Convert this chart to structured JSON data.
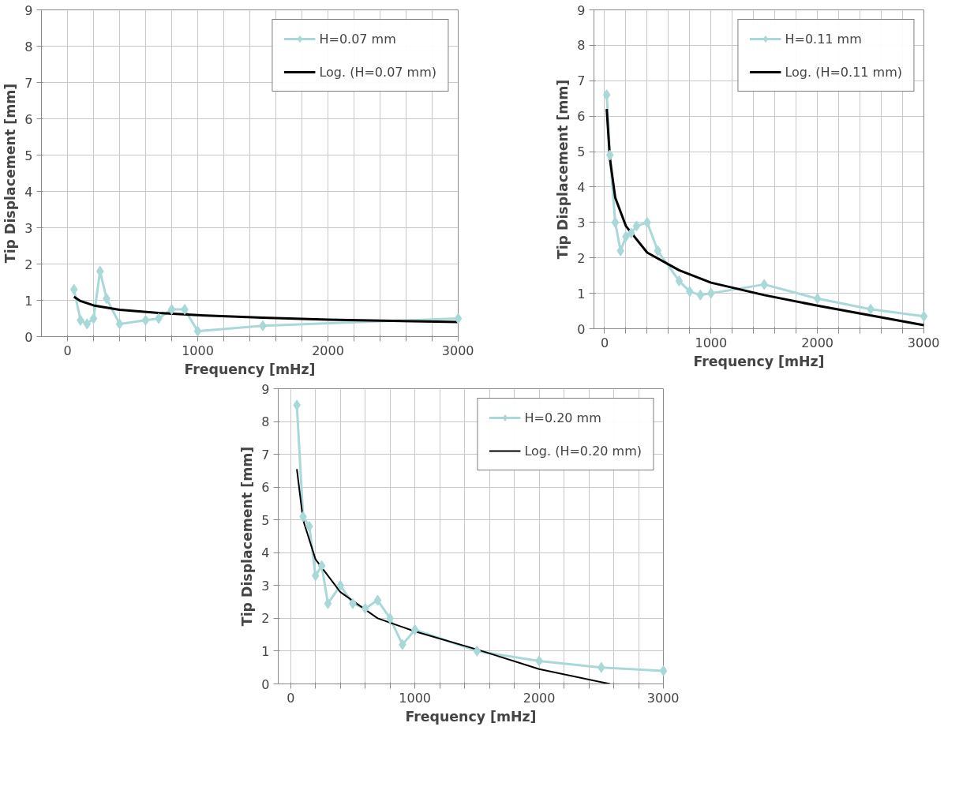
{
  "chart_data": [
    {
      "type": "line",
      "xlabel": "Frequency [mHz]",
      "ylabel": "Tip Displacement [mm]",
      "xlim": [
        -200,
        3000
      ],
      "ylim": [
        0,
        9
      ],
      "yticks": [
        0,
        1,
        2,
        3,
        4,
        5,
        6,
        7,
        8,
        9
      ],
      "xticks": [
        0,
        {
          "value": 200,
          "label": null
        },
        {
          "value": 400,
          "label": null
        },
        {
          "value": 600,
          "label": null
        },
        {
          "value": 800,
          "label": null
        },
        1000,
        {
          "value": 1200,
          "label": null
        },
        {
          "value": 1400,
          "label": null
        },
        {
          "value": 1600,
          "label": null
        },
        {
          "value": 1800,
          "label": null
        },
        2000,
        {
          "value": 2200,
          "label": null
        },
        {
          "value": 2400,
          "label": null
        },
        {
          "value": 2600,
          "label": null
        },
        {
          "value": 2800,
          "label": null
        },
        3000
      ],
      "grid": true,
      "legend": "top right",
      "series": [
        {
          "name": "H=0.07 mm",
          "color": "#a8d8d8",
          "marker": "diamond",
          "x": [
            50,
            100,
            150,
            200,
            250,
            300,
            400,
            600,
            700,
            800,
            900,
            1000,
            1500,
            3000
          ],
          "values": [
            1.3,
            0.45,
            0.35,
            0.5,
            1.8,
            1.05,
            0.35,
            0.45,
            0.5,
            0.75,
            0.75,
            0.15,
            0.3,
            0.5
          ]
        },
        {
          "name": "Log. (H=0.07 mm)",
          "color": "#000000",
          "marker": "none",
          "x": [
            50,
            100,
            200,
            400,
            700,
            1000,
            1500,
            2000,
            3000
          ],
          "values": [
            1.1,
            0.98,
            0.86,
            0.74,
            0.65,
            0.59,
            0.52,
            0.47,
            0.4
          ]
        }
      ]
    },
    {
      "type": "line",
      "xlabel": "Frequency [mHz]",
      "ylabel": "Tip Displacement [mm]",
      "xlim": [
        -100,
        3000
      ],
      "ylim": [
        0,
        9
      ],
      "yticks": [
        0,
        1,
        2,
        3,
        4,
        5,
        6,
        7,
        8,
        9
      ],
      "xticks": [
        0,
        {
          "value": 200,
          "label": null
        },
        {
          "value": 400,
          "label": null
        },
        {
          "value": 600,
          "label": null
        },
        {
          "value": 800,
          "label": null
        },
        1000,
        {
          "value": 1200,
          "label": null
        },
        {
          "value": 1400,
          "label": null
        },
        {
          "value": 1600,
          "label": null
        },
        {
          "value": 1800,
          "label": null
        },
        2000,
        {
          "value": 2200,
          "label": null
        },
        {
          "value": 2400,
          "label": null
        },
        {
          "value": 2600,
          "label": null
        },
        {
          "value": 2800,
          "label": null
        },
        3000
      ],
      "grid": true,
      "legend": "top right",
      "series": [
        {
          "name": "H=0.11 mm",
          "color": "#a8d8d8",
          "marker": "diamond",
          "x": [
            20,
            50,
            100,
            150,
            200,
            250,
            300,
            400,
            500,
            700,
            800,
            900,
            1000,
            1500,
            2000,
            2500,
            3000
          ],
          "values": [
            6.6,
            4.9,
            3.0,
            2.2,
            2.6,
            2.7,
            2.9,
            3.0,
            2.2,
            1.35,
            1.05,
            0.95,
            1.0,
            1.25,
            0.85,
            0.55,
            0.35
          ]
        },
        {
          "name": "Log. (H=0.11 mm)",
          "color": "#000000",
          "marker": "none",
          "x": [
            20,
            50,
            100,
            200,
            400,
            700,
            1000,
            1500,
            2000,
            3000
          ],
          "values": [
            6.2,
            4.8,
            3.7,
            2.9,
            2.15,
            1.65,
            1.3,
            0.95,
            0.65,
            0.1
          ]
        }
      ]
    },
    {
      "type": "line",
      "xlabel": "Frequency [mHz]",
      "ylabel": "Tip Displacement [mm]",
      "xlim": [
        -100,
        3000
      ],
      "ylim": [
        0,
        9
      ],
      "yticks": [
        0,
        1,
        2,
        3,
        4,
        5,
        6,
        7,
        8,
        9
      ],
      "xticks": [
        0,
        {
          "value": 200,
          "label": null
        },
        {
          "value": 400,
          "label": null
        },
        {
          "value": 600,
          "label": null
        },
        {
          "value": 800,
          "label": null
        },
        1000,
        {
          "value": 1200,
          "label": null
        },
        {
          "value": 1400,
          "label": null
        },
        {
          "value": 1600,
          "label": null
        },
        {
          "value": 1800,
          "label": null
        },
        2000,
        {
          "value": 2200,
          "label": null
        },
        {
          "value": 2400,
          "label": null
        },
        {
          "value": 2600,
          "label": null
        },
        {
          "value": 2800,
          "label": null
        },
        3000
      ],
      "grid": true,
      "legend": "top right",
      "series": [
        {
          "name": "H=0.20 mm",
          "color": "#a8d8d8",
          "marker": "diamond",
          "x": [
            50,
            100,
            150,
            200,
            250,
            300,
            400,
            500,
            600,
            700,
            800,
            900,
            1000,
            1500,
            2000,
            2500,
            3000
          ],
          "values": [
            8.5,
            5.1,
            4.8,
            3.3,
            3.6,
            2.45,
            3.0,
            2.45,
            2.3,
            2.55,
            2.0,
            1.2,
            1.65,
            1.0,
            0.7,
            0.5,
            0.4
          ]
        },
        {
          "name": "Log. (H=0.20 mm)",
          "color": "#000000",
          "marker": "none",
          "x": [
            50,
            100,
            200,
            400,
            700,
            1000,
            1500,
            2000,
            2570
          ],
          "values": [
            6.55,
            5.0,
            3.8,
            2.8,
            2.0,
            1.6,
            1.05,
            0.45,
            0.0
          ]
        }
      ]
    }
  ]
}
